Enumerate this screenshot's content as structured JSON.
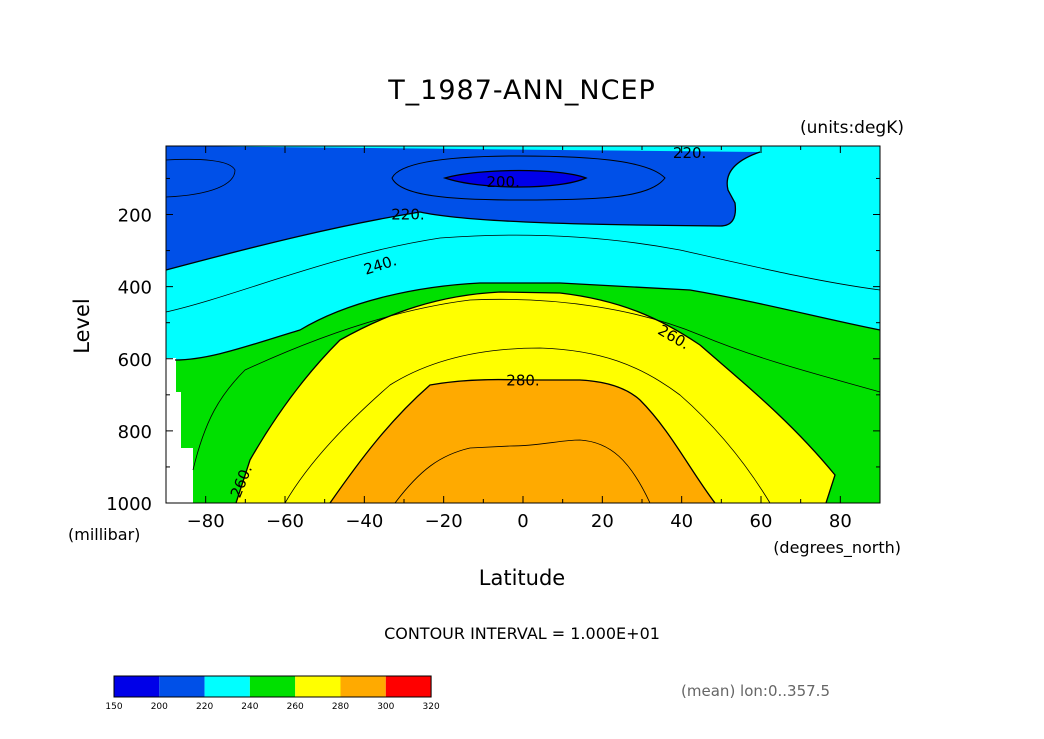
{
  "chart_data": {
    "type": "contour",
    "title": "T_1987-ANN_NCEP",
    "units_label": "(units:degK)",
    "xlabel": "Latitude",
    "x_units": "(degrees_north)",
    "ylabel": "Level",
    "y_units": "(millibar)",
    "xlim": [
      -90,
      90
    ],
    "ylim": [
      1000,
      10
    ],
    "y_inverted": true,
    "x_ticks": [
      "-80",
      "-60",
      "-40",
      "-20",
      "0",
      "20",
      "40",
      "60",
      "80"
    ],
    "x_tick_values": [
      -80,
      -60,
      -40,
      -20,
      0,
      20,
      40,
      60,
      80
    ],
    "y_ticks": [
      "200",
      "400",
      "600",
      "800",
      "1000"
    ],
    "y_tick_values": [
      200,
      400,
      600,
      800,
      1000
    ],
    "contour_interval_text": "CONTOUR INTERVAL = 1.000E+01",
    "contour_labels": [
      {
        "text": "200.",
        "lat": -5,
        "lev": 110
      },
      {
        "text": "220.",
        "lat": 42,
        "lev": 30
      },
      {
        "text": "220.",
        "lat": -29,
        "lev": 200
      },
      {
        "text": "240.",
        "lat": -36,
        "lev": 340
      },
      {
        "text": "260.",
        "lat": 38,
        "lev": 540
      },
      {
        "text": "260.",
        "lat": -71,
        "lev": 940
      },
      {
        "text": "280.",
        "lat": 0,
        "lev": 660
      }
    ],
    "levels": [
      {
        "label": "150",
        "color": "#0000e8"
      },
      {
        "label": "200",
        "color": "#0050e8"
      },
      {
        "label": "220",
        "color": "#00ffff"
      },
      {
        "label": "240",
        "color": "#00e000"
      },
      {
        "label": "260",
        "color": "#ffff00"
      },
      {
        "label": "280",
        "color": "#ffaa00"
      },
      {
        "label": "300",
        "color": "#ff0000"
      },
      {
        "label": "320",
        "color": ""
      }
    ],
    "footnote": "(mean) lon:0..357.5",
    "grid": false
  }
}
